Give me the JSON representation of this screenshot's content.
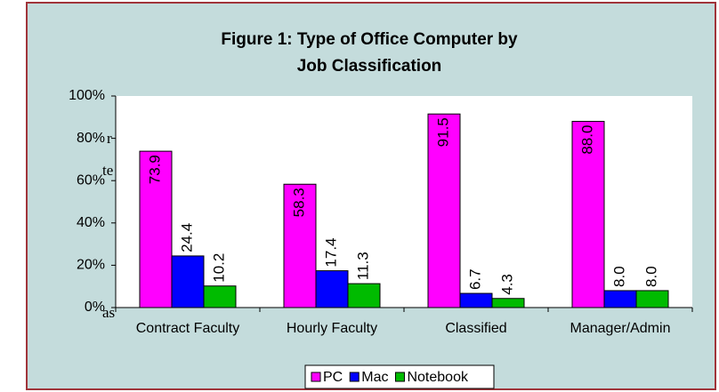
{
  "margin_text": [
    "r",
    "te",
    "as"
  ],
  "chart_data": {
    "type": "bar",
    "title": [
      "Figure 1: Type of Office Computer by",
      "Job Classification"
    ],
    "categories": [
      "Contract Faculty",
      "Hourly Faculty",
      "Classified",
      "Manager/Admin"
    ],
    "series": [
      {
        "name": "PC",
        "color": "#ff00ff",
        "values": [
          73.9,
          58.3,
          91.5,
          88.0
        ],
        "value_labels": [
          "73.9",
          "58.3",
          "91.5",
          "88.0"
        ]
      },
      {
        "name": "Mac",
        "color": "#0000ff",
        "values": [
          24.4,
          17.4,
          6.7,
          8.0
        ],
        "value_labels": [
          "24.4",
          "17.4",
          "6.7",
          "8.0"
        ]
      },
      {
        "name": "Notebook",
        "color": "#00bb00",
        "values": [
          10.2,
          11.3,
          4.3,
          8.0
        ],
        "value_labels": [
          "10.2",
          "11.3",
          "4.3",
          "8.0"
        ]
      }
    ],
    "ylim": [
      0,
      100
    ],
    "yticks": [
      {
        "value": 0,
        "label": "0%"
      },
      {
        "value": 20,
        "label": "20%"
      },
      {
        "value": 40,
        "label": "40%"
      },
      {
        "value": 60,
        "label": "60%"
      },
      {
        "value": 80,
        "label": "80%"
      },
      {
        "value": 100,
        "label": "100%"
      }
    ],
    "grid": false,
    "legend": "bottom"
  }
}
